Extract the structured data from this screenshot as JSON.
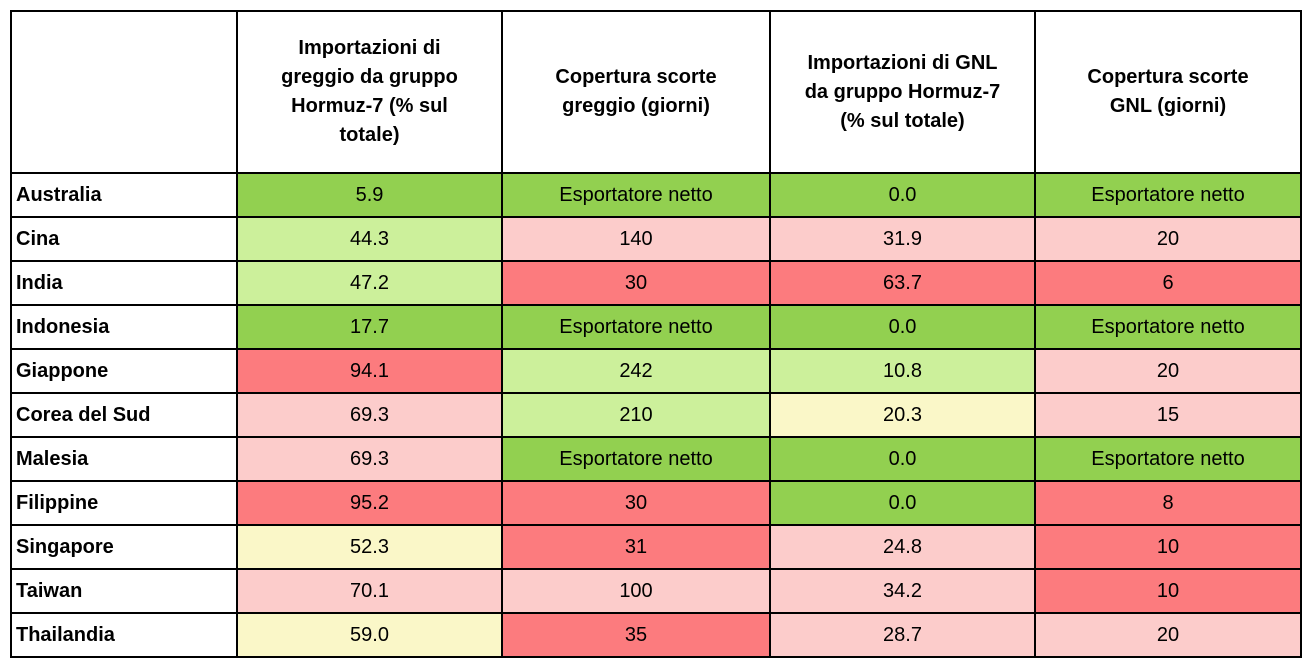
{
  "colors": {
    "green": "#92D050",
    "light_green": "#CCF09B",
    "yellow": "#FAF7C8",
    "pink": "#FCCCCB",
    "red": "#FC7B7E",
    "border": "#000000",
    "text": "#000000"
  },
  "chart_data": {
    "type": "table",
    "columns": [
      "",
      "Importazioni di greggio da gruppo Hormuz-7 (% sul totale)",
      "Copertura scorte greggio (giorni)",
      "Importazioni di GNL da gruppo Hormuz-7 (% sul totale)",
      "Copertura scorte GNL (giorni)"
    ],
    "rows": [
      {
        "country": "Australia",
        "cells": [
          {
            "value": "5.9",
            "color": "green"
          },
          {
            "value": "Esportatore netto",
            "color": "green"
          },
          {
            "value": "0.0",
            "color": "green"
          },
          {
            "value": "Esportatore netto",
            "color": "green"
          }
        ]
      },
      {
        "country": "Cina",
        "cells": [
          {
            "value": "44.3",
            "color": "light_green"
          },
          {
            "value": "140",
            "color": "pink"
          },
          {
            "value": "31.9",
            "color": "pink"
          },
          {
            "value": "20",
            "color": "pink"
          }
        ]
      },
      {
        "country": "India",
        "cells": [
          {
            "value": "47.2",
            "color": "light_green"
          },
          {
            "value": "30",
            "color": "red"
          },
          {
            "value": "63.7",
            "color": "red"
          },
          {
            "value": "6",
            "color": "red"
          }
        ]
      },
      {
        "country": "Indonesia",
        "cells": [
          {
            "value": "17.7",
            "color": "green"
          },
          {
            "value": "Esportatore netto",
            "color": "green"
          },
          {
            "value": "0.0",
            "color": "green"
          },
          {
            "value": "Esportatore netto",
            "color": "green"
          }
        ]
      },
      {
        "country": "Giappone",
        "cells": [
          {
            "value": "94.1",
            "color": "red"
          },
          {
            "value": "242",
            "color": "light_green"
          },
          {
            "value": "10.8",
            "color": "light_green"
          },
          {
            "value": "20",
            "color": "pink"
          }
        ]
      },
      {
        "country": "Corea del Sud",
        "cells": [
          {
            "value": "69.3",
            "color": "pink"
          },
          {
            "value": "210",
            "color": "light_green"
          },
          {
            "value": "20.3",
            "color": "yellow"
          },
          {
            "value": "15",
            "color": "pink"
          }
        ]
      },
      {
        "country": "Malesia",
        "cells": [
          {
            "value": "69.3",
            "color": "pink"
          },
          {
            "value": "Esportatore netto",
            "color": "green"
          },
          {
            "value": "0.0",
            "color": "green"
          },
          {
            "value": "Esportatore netto",
            "color": "green"
          }
        ]
      },
      {
        "country": "Filippine",
        "cells": [
          {
            "value": "95.2",
            "color": "red"
          },
          {
            "value": "30",
            "color": "red"
          },
          {
            "value": "0.0",
            "color": "green"
          },
          {
            "value": "8",
            "color": "red"
          }
        ]
      },
      {
        "country": "Singapore",
        "cells": [
          {
            "value": "52.3",
            "color": "yellow"
          },
          {
            "value": "31",
            "color": "red"
          },
          {
            "value": "24.8",
            "color": "pink"
          },
          {
            "value": "10",
            "color": "red"
          }
        ]
      },
      {
        "country": "Taiwan",
        "cells": [
          {
            "value": "70.1",
            "color": "pink"
          },
          {
            "value": "100",
            "color": "pink"
          },
          {
            "value": "34.2",
            "color": "pink"
          },
          {
            "value": "10",
            "color": "red"
          }
        ]
      },
      {
        "country": "Thailandia",
        "cells": [
          {
            "value": "59.0",
            "color": "yellow"
          },
          {
            "value": "35",
            "color": "red"
          },
          {
            "value": "28.7",
            "color": "pink"
          },
          {
            "value": "20",
            "color": "pink"
          }
        ]
      }
    ]
  }
}
